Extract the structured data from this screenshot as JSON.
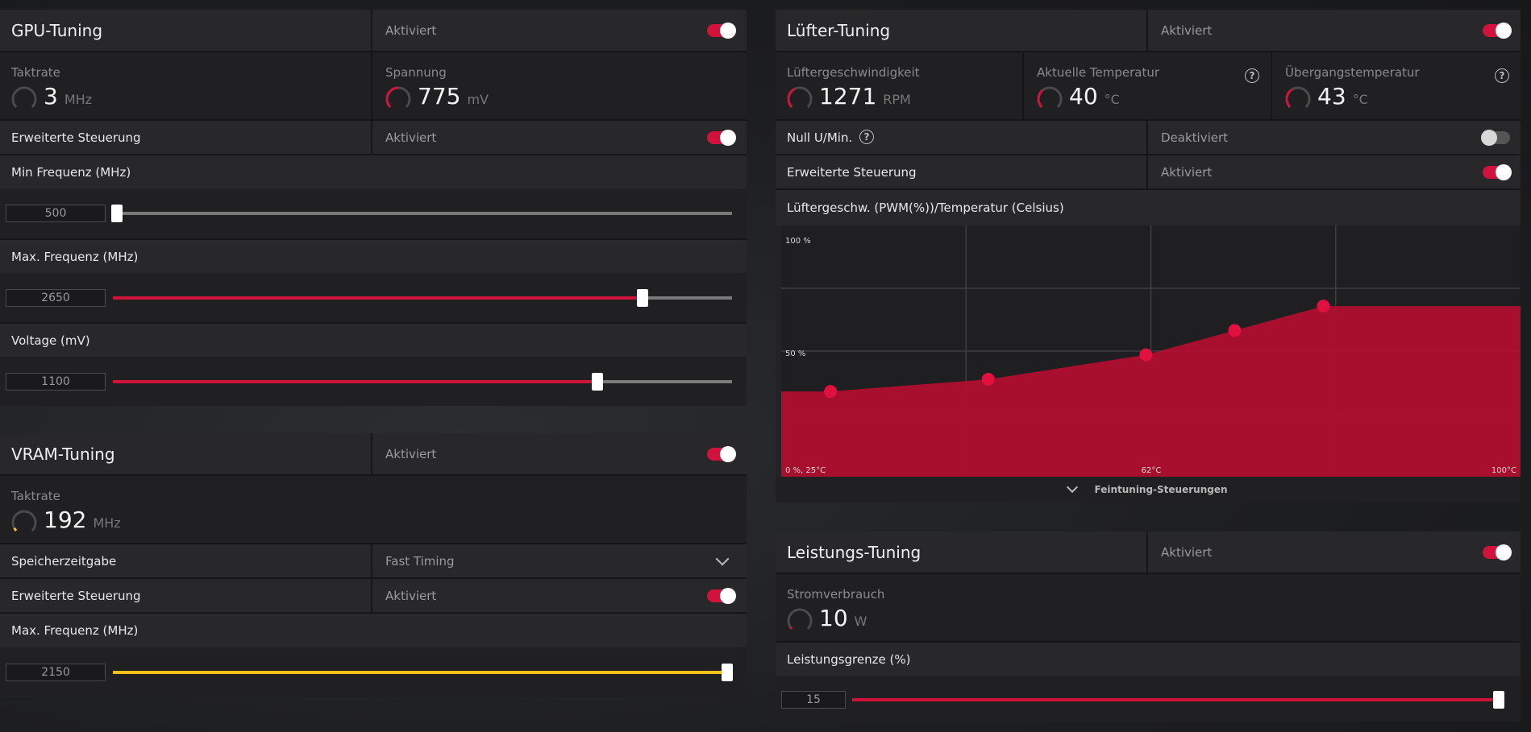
{
  "gpu": {
    "title": "GPU-Tuning",
    "status": "Aktiviert",
    "enabled": true,
    "clock": {
      "label": "Taktrate",
      "value": "3",
      "unit": "MHz",
      "gauge_level": 0.0
    },
    "voltage": {
      "label": "Spannung",
      "value": "775",
      "unit": "mV",
      "gauge_level": 0.5
    },
    "advanced": {
      "label": "Erweiterte Steuerung",
      "status": "Aktiviert",
      "enabled": true
    },
    "min_freq": {
      "label": "Min Frequenz (MHz)",
      "value": "500",
      "level": 0.0
    },
    "max_freq": {
      "label": "Max. Frequenz (MHz)",
      "value": "2650",
      "level": 0.857
    },
    "voltage_slider": {
      "label": "Voltage (mV)",
      "value": "1100",
      "level": 0.784
    }
  },
  "vram": {
    "title": "VRAM-Tuning",
    "status": "Aktiviert",
    "enabled": true,
    "clock": {
      "label": "Taktrate",
      "value": "192",
      "unit": "MHz",
      "gauge_level": 0.05
    },
    "timing": {
      "label": "Speicherzeitgabe",
      "value": "Fast Timing"
    },
    "advanced": {
      "label": "Erweiterte Steuerung",
      "status": "Aktiviert",
      "enabled": true
    },
    "max_freq": {
      "label": "Max. Frequenz (MHz)",
      "value": "2150",
      "level": 1.0
    }
  },
  "fan": {
    "title": "Lüfter-Tuning",
    "status": "Aktiviert",
    "enabled": true,
    "speed": {
      "label": "Lüftergeschwindigkeit",
      "value": "1271",
      "unit": "RPM",
      "gauge_level": 0.4
    },
    "current_temp": {
      "label": "Aktuelle Temperatur",
      "value": "40",
      "unit": "°C",
      "gauge_level": 0.35
    },
    "junction_temp": {
      "label": "Übergangstemperatur",
      "value": "43",
      "unit": "°C",
      "gauge_level": 0.38
    },
    "zero_rpm": {
      "label": "Null U/Min.",
      "status": "Deaktiviert",
      "enabled": false
    },
    "advanced": {
      "label": "Erweiterte Steuerung",
      "status": "Aktiviert",
      "enabled": true
    },
    "curve": {
      "label": "Lüftergeschw. (PWM(%))/Temperatur (Celsius)",
      "y_top_label": "100 %",
      "y_mid_label": "50 %",
      "x_left_label": "0 %, 25°C",
      "x_mid_label": "62°C",
      "x_right_label": "100°C"
    },
    "fine_tune_label": "Feintuning-Steuerungen"
  },
  "chart_data": {
    "type": "area",
    "title": "Lüftergeschw. (PWM(%))/Temperatur (Celsius)",
    "xlabel": "Temperatur (Celsius)",
    "ylabel": "PWM(%)",
    "xlim": [
      25,
      100
    ],
    "ylim": [
      0,
      100
    ],
    "grid": true,
    "x": [
      30,
      46,
      62,
      71,
      80
    ],
    "series": [
      {
        "values": [
          35,
          40,
          50,
          60,
          70
        ]
      }
    ],
    "end_value": 70
  },
  "power": {
    "title": "Leistungs-Tuning",
    "status": "Aktiviert",
    "enabled": true,
    "consumption": {
      "label": "Stromverbrauch",
      "value": "10",
      "unit": "W",
      "gauge_level": 0.05
    },
    "limit": {
      "label": "Leistungsgrenze (%)",
      "value": "15",
      "level": 1.0
    }
  },
  "colors": {
    "accent": "#d1133b",
    "vram_accent": "#f2c21b",
    "gauge_track": "#4a4a4a"
  }
}
